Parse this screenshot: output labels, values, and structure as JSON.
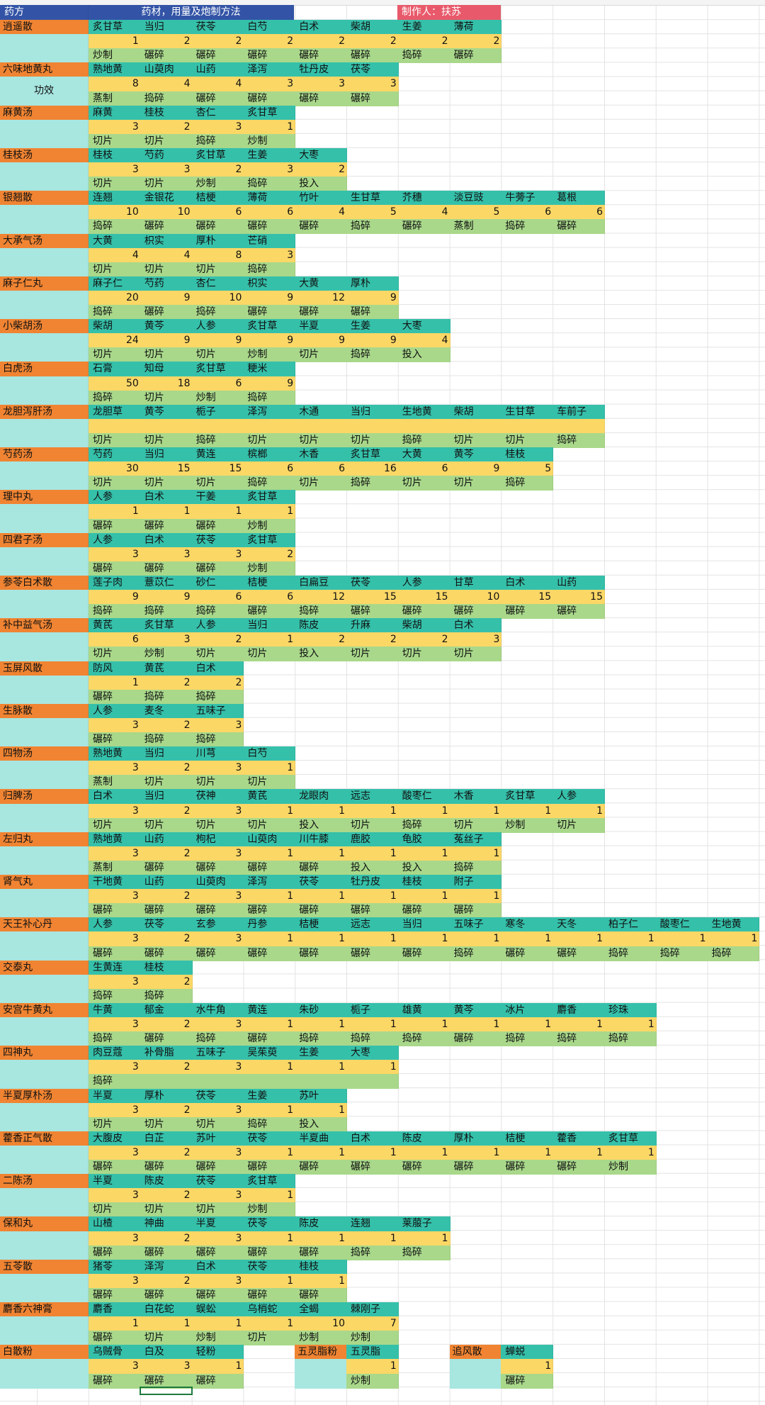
{
  "colors": {
    "recipe_bg": "#f08432",
    "herb_bg": "#35c0aa",
    "dose_bg": "#fbd766",
    "method_bg": "#a9d88a",
    "aside_bg": "#a8e6e0",
    "header_blue": "#3354a6",
    "author_bg": "#e85a6b",
    "grid_line": "#e3e3e3"
  },
  "header": {
    "col_a": "药方",
    "main": "药材，用量及炮制方法",
    "author": "制作人：扶苏"
  },
  "gongxiao_label": "功效",
  "recipes": [
    {
      "name": "逍遥散",
      "herbs": [
        "炙甘草",
        "当归",
        "茯苓",
        "白芍",
        "白术",
        "柴胡",
        "生姜",
        "薄荷"
      ],
      "doses": [
        "1",
        "2",
        "2",
        "2",
        "2",
        "2",
        "2",
        "2"
      ],
      "methods": [
        "炒制",
        "碾碎",
        "碾碎",
        "碾碎",
        "碾碎",
        "碾碎",
        "捣碎",
        "碾碎"
      ]
    },
    {
      "name": "六味地黄丸",
      "herbs": [
        "熟地黄",
        "山萸肉",
        "山药",
        "泽泻",
        "牡丹皮",
        "茯苓"
      ],
      "doses": [
        "8",
        "4",
        "4",
        "3",
        "3",
        "3"
      ],
      "methods": [
        "蒸制",
        "捣碎",
        "碾碎",
        "碾碎",
        "碾碎",
        "碾碎"
      ]
    },
    {
      "name": "麻黄汤",
      "herbs": [
        "麻黄",
        "桂枝",
        "杏仁",
        "炙甘草"
      ],
      "doses": [
        "3",
        "2",
        "3",
        "1"
      ],
      "methods": [
        "切片",
        "切片",
        "捣碎",
        "炒制"
      ]
    },
    {
      "name": "桂枝汤",
      "herbs": [
        "桂枝",
        "芍药",
        "炙甘草",
        "生姜",
        "大枣"
      ],
      "doses": [
        "3",
        "3",
        "2",
        "3",
        "2"
      ],
      "methods": [
        "切片",
        "切片",
        "炒制",
        "捣碎",
        "投入"
      ]
    },
    {
      "name": "银翘散",
      "herbs": [
        "连翘",
        "金银花",
        "桔梗",
        "薄荷",
        "竹叶",
        "生甘草",
        "芥穗",
        "淡豆豉",
        "牛蒡子",
        "葛根"
      ],
      "doses": [
        "10",
        "10",
        "6",
        "6",
        "4",
        "5",
        "4",
        "5",
        "6",
        "6"
      ],
      "methods": [
        "捣碎",
        "碾碎",
        "碾碎",
        "碾碎",
        "碾碎",
        "捣碎",
        "碾碎",
        "蒸制",
        "捣碎",
        "碾碎"
      ]
    },
    {
      "name": "大承气汤",
      "herbs": [
        "大黄",
        "枳实",
        "厚朴",
        "芒硝"
      ],
      "doses": [
        "4",
        "4",
        "8",
        "3"
      ],
      "methods": [
        "切片",
        "切片",
        "切片",
        "捣碎"
      ]
    },
    {
      "name": "麻子仁丸",
      "herbs": [
        "麻子仁",
        "芍药",
        "杏仁",
        "枳实",
        "大黄",
        "厚朴"
      ],
      "doses": [
        "20",
        "9",
        "10",
        "9",
        "12",
        "9"
      ],
      "methods": [
        "捣碎",
        "碾碎",
        "捣碎",
        "碾碎",
        "碾碎",
        "碾碎"
      ]
    },
    {
      "name": "小柴胡汤",
      "herbs": [
        "柴胡",
        "黄芩",
        "人参",
        "炙甘草",
        "半夏",
        "生姜",
        "大枣"
      ],
      "doses": [
        "24",
        "9",
        "9",
        "9",
        "9",
        "9",
        "4"
      ],
      "methods": [
        "切片",
        "切片",
        "切片",
        "炒制",
        "切片",
        "捣碎",
        "投入"
      ]
    },
    {
      "name": "白虎汤",
      "herbs": [
        "石膏",
        "知母",
        "炙甘草",
        "粳米"
      ],
      "doses": [
        "50",
        "18",
        "6",
        "9"
      ],
      "methods": [
        "捣碎",
        "切片",
        "炒制",
        "捣碎"
      ]
    },
    {
      "name": "龙胆泻肝汤",
      "herbs": [
        "龙胆草",
        "黄芩",
        "栀子",
        "泽泻",
        "木通",
        "当归",
        "生地黄",
        "柴胡",
        "生甘草",
        "车前子"
      ],
      "doses": [
        "",
        "",
        "",
        "",
        "",
        "",
        "",
        "",
        "",
        ""
      ],
      "methods": [
        "切片",
        "切片",
        "捣碎",
        "切片",
        "切片",
        "切片",
        "捣碎",
        "切片",
        "切片",
        "捣碎"
      ]
    },
    {
      "name": "芍药汤",
      "herbs": [
        "芍药",
        "当归",
        "黄连",
        "槟榔",
        "木香",
        "炙甘草",
        "大黄",
        "黄芩",
        "桂枝"
      ],
      "doses": [
        "30",
        "15",
        "15",
        "6",
        "6",
        "16",
        "6",
        "9",
        "5"
      ],
      "methods": [
        "切片",
        "切片",
        "切片",
        "捣碎",
        "切片",
        "捣碎",
        "切片",
        "切片",
        "捣碎"
      ]
    },
    {
      "name": "理中丸",
      "herbs": [
        "人参",
        "白术",
        "干姜",
        "炙甘草"
      ],
      "doses": [
        "1",
        "1",
        "1",
        "1"
      ],
      "methods": [
        "碾碎",
        "碾碎",
        "碾碎",
        "炒制"
      ]
    },
    {
      "name": "四君子汤",
      "herbs": [
        "人参",
        "白术",
        "茯苓",
        "炙甘草"
      ],
      "doses": [
        "3",
        "3",
        "3",
        "2"
      ],
      "methods": [
        "碾碎",
        "碾碎",
        "碾碎",
        "炒制"
      ]
    },
    {
      "name": "参苓白术散",
      "herbs": [
        "莲子肉",
        "薏苡仁",
        "砂仁",
        "桔梗",
        "白扁豆",
        "茯苓",
        "人参",
        "甘草",
        "白术",
        "山药"
      ],
      "doses": [
        "9",
        "9",
        "6",
        "6",
        "12",
        "15",
        "15",
        "10",
        "15",
        "15"
      ],
      "methods": [
        "捣碎",
        "捣碎",
        "捣碎",
        "碾碎",
        "捣碎",
        "碾碎",
        "碾碎",
        "碾碎",
        "碾碎",
        "碾碎"
      ]
    },
    {
      "name": "补中益气汤",
      "herbs": [
        "黄芪",
        "炙甘草",
        "人参",
        "当归",
        "陈皮",
        "升麻",
        "柴胡",
        "白术"
      ],
      "doses": [
        "6",
        "3",
        "2",
        "1",
        "2",
        "2",
        "2",
        "3"
      ],
      "methods": [
        "切片",
        "炒制",
        "切片",
        "切片",
        "投入",
        "切片",
        "切片",
        "切片"
      ]
    },
    {
      "name": "玉屏风散",
      "herbs": [
        "防风",
        "黄芪",
        "白术"
      ],
      "doses": [
        "1",
        "2",
        "2"
      ],
      "methods": [
        "碾碎",
        "捣碎",
        "捣碎"
      ]
    },
    {
      "name": "生脉散",
      "herbs": [
        "人参",
        "麦冬",
        "五味子"
      ],
      "doses": [
        "3",
        "2",
        "3"
      ],
      "methods": [
        "碾碎",
        "捣碎",
        "捣碎"
      ]
    },
    {
      "name": "四物汤",
      "herbs": [
        "熟地黄",
        "当归",
        "川芎",
        "白芍"
      ],
      "doses": [
        "3",
        "2",
        "3",
        "1"
      ],
      "methods": [
        "蒸制",
        "切片",
        "切片",
        "切片"
      ]
    },
    {
      "name": "归脾汤",
      "herbs": [
        "白术",
        "当归",
        "茯神",
        "黄芪",
        "龙眼肉",
        "远志",
        "酸枣仁",
        "木香",
        "炙甘草",
        "人参"
      ],
      "doses": [
        "3",
        "2",
        "3",
        "1",
        "1",
        "1",
        "1",
        "1",
        "1",
        "1"
      ],
      "methods": [
        "切片",
        "切片",
        "切片",
        "切片",
        "投入",
        "切片",
        "捣碎",
        "切片",
        "炒制",
        "切片"
      ]
    },
    {
      "name": "左归丸",
      "herbs": [
        "熟地黄",
        "山药",
        "枸杞",
        "山萸肉",
        "川牛膝",
        "鹿胶",
        "龟胶",
        "菟丝子"
      ],
      "doses": [
        "3",
        "2",
        "3",
        "1",
        "1",
        "1",
        "1",
        "1"
      ],
      "methods": [
        "蒸制",
        "碾碎",
        "碾碎",
        "碾碎",
        "碾碎",
        "投入",
        "投入",
        "捣碎"
      ]
    },
    {
      "name": "肾气丸",
      "herbs": [
        "干地黄",
        "山药",
        "山萸肉",
        "泽泻",
        "茯苓",
        "牡丹皮",
        "桂枝",
        "附子"
      ],
      "doses": [
        "3",
        "2",
        "3",
        "1",
        "1",
        "1",
        "1",
        "1"
      ],
      "methods": [
        "碾碎",
        "碾碎",
        "碾碎",
        "碾碎",
        "碾碎",
        "碾碎",
        "碾碎",
        "碾碎"
      ]
    },
    {
      "name": "天王补心丹",
      "herbs": [
        "人参",
        "茯苓",
        "玄参",
        "丹参",
        "桔梗",
        "远志",
        "当归",
        "五味子",
        "寒冬",
        "天冬",
        "柏子仁",
        "酸枣仁",
        "生地黄"
      ],
      "doses": [
        "3",
        "2",
        "3",
        "1",
        "1",
        "1",
        "1",
        "1",
        "1",
        "1",
        "1",
        "1",
        "1"
      ],
      "methods": [
        "碾碎",
        "碾碎",
        "碾碎",
        "碾碎",
        "碾碎",
        "碾碎",
        "碾碎",
        "捣碎",
        "碾碎",
        "碾碎",
        "捣碎",
        "捣碎",
        "捣碎"
      ]
    },
    {
      "name": "交泰丸",
      "herbs": [
        "生黄连",
        "桂枝"
      ],
      "doses": [
        "3",
        "2"
      ],
      "methods": [
        "捣碎",
        "捣碎"
      ]
    },
    {
      "name": "安宫牛黄丸",
      "herbs": [
        "牛黄",
        "郁金",
        "水牛角",
        "黄连",
        "朱砂",
        "栀子",
        "雄黄",
        "黄芩",
        "冰片",
        "麝香",
        "珍珠"
      ],
      "doses": [
        "3",
        "2",
        "3",
        "1",
        "1",
        "1",
        "1",
        "1",
        "1",
        "1",
        "1"
      ],
      "methods": [
        "捣碎",
        "碾碎",
        "捣碎",
        "碾碎",
        "捣碎",
        "捣碎",
        "捣碎",
        "碾碎",
        "捣碎",
        "捣碎",
        "捣碎"
      ]
    },
    {
      "name": "四神丸",
      "herbs": [
        "肉豆蔻",
        "补骨脂",
        "五味子",
        "吴茱萸",
        "生姜",
        "大枣"
      ],
      "doses": [
        "3",
        "2",
        "3",
        "1",
        "1",
        "1"
      ],
      "methods": [
        "捣碎",
        "",
        "",
        "",
        "",
        ""
      ]
    },
    {
      "name": "半夏厚朴汤",
      "herbs": [
        "半夏",
        "厚朴",
        "茯苓",
        "生姜",
        "苏叶"
      ],
      "doses": [
        "3",
        "2",
        "3",
        "1",
        "1"
      ],
      "methods": [
        "切片",
        "切片",
        "切片",
        "捣碎",
        "投入"
      ]
    },
    {
      "name": "藿香正气散",
      "herbs": [
        "大腹皮",
        "白芷",
        "苏叶",
        "茯苓",
        "半夏曲",
        "白术",
        "陈皮",
        "厚朴",
        "桔梗",
        "藿香",
        "炙甘草"
      ],
      "doses": [
        "3",
        "2",
        "3",
        "1",
        "1",
        "1",
        "1",
        "1",
        "1",
        "1",
        "1"
      ],
      "methods": [
        "碾碎",
        "碾碎",
        "碾碎",
        "碾碎",
        "碾碎",
        "碾碎",
        "碾碎",
        "碾碎",
        "碾碎",
        "碾碎",
        "炒制"
      ]
    },
    {
      "name": "二陈汤",
      "herbs": [
        "半夏",
        "陈皮",
        "茯苓",
        "炙甘草"
      ],
      "doses": [
        "3",
        "2",
        "3",
        "1"
      ],
      "methods": [
        "切片",
        "切片",
        "切片",
        "炒制"
      ]
    },
    {
      "name": "保和丸",
      "herbs": [
        "山楂",
        "神曲",
        "半夏",
        "茯苓",
        "陈皮",
        "连翘",
        "莱菔子"
      ],
      "doses": [
        "3",
        "2",
        "3",
        "1",
        "1",
        "1",
        "1"
      ],
      "methods": [
        "碾碎",
        "碾碎",
        "碾碎",
        "碾碎",
        "碾碎",
        "捣碎",
        "捣碎"
      ]
    },
    {
      "name": "五苓散",
      "herbs": [
        "猪苓",
        "泽泻",
        "白术",
        "茯苓",
        "桂枝"
      ],
      "doses": [
        "3",
        "2",
        "3",
        "1",
        "1"
      ],
      "methods": [
        "碾碎",
        "碾碎",
        "碾碎",
        "碾碎",
        "碾碎"
      ]
    },
    {
      "name": "麝香六神膏",
      "herbs": [
        "麝香",
        "白花蛇",
        "蜈蚣",
        "乌梢蛇",
        "全蝎",
        "棘刚子"
      ],
      "doses": [
        "1",
        "1",
        "1",
        "1",
        "10",
        "7"
      ],
      "methods": [
        "碾碎",
        "切片",
        "炒制",
        "切片",
        "炒制",
        "炒制"
      ]
    }
  ],
  "last_row": {
    "groups": [
      {
        "name": "白散粉",
        "herbs": [
          "乌贼骨",
          "白及",
          "轻粉"
        ],
        "doses": [
          "3",
          "3",
          "1"
        ],
        "methods": [
          "碾碎",
          "碾碎",
          "碾碎"
        ]
      },
      {
        "name": "五灵脂粉",
        "herbs": [
          "五灵脂"
        ],
        "doses": [
          "1"
        ],
        "methods": [
          "炒制"
        ]
      },
      {
        "name": "追风散",
        "herbs": [
          "蝉蜕"
        ],
        "doses": [
          "1"
        ],
        "methods": [
          "碾碎"
        ]
      }
    ]
  }
}
